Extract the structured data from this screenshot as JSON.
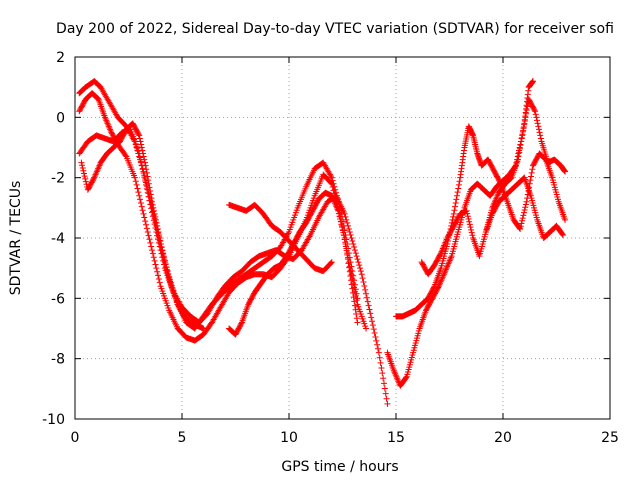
{
  "chart_data": {
    "type": "scatter",
    "title": "Day 200 of 2022, Sidereal Day-to-day VTEC variation (SDTVAR) for receiver sofi",
    "xlabel": "GPS time / hours",
    "ylabel": "SDTVAR / TECUs",
    "xlim": [
      0,
      25
    ],
    "ylim": [
      -10,
      2
    ],
    "xticks": [
      "0",
      "5",
      "10",
      "15",
      "20",
      "25"
    ],
    "yticks": [
      "2",
      "0",
      "-2",
      "-4",
      "-6",
      "-8",
      "-10"
    ],
    "grid": true,
    "marker": "+",
    "color": "#ff0000",
    "series": [
      {
        "name": "trace-1",
        "x": [
          0.2,
          0.5,
          0.9,
          1.2,
          1.6,
          2.0,
          2.4,
          2.8,
          3.2,
          3.6,
          4.0,
          4.4,
          4.8,
          5.2,
          5.6,
          6.0,
          6.4,
          6.8,
          7.2,
          7.6,
          8.0,
          8.4,
          8.8,
          9.2,
          9.6,
          10.0,
          10.4,
          10.8,
          11.2,
          11.6,
          12.0,
          12.4,
          12.8,
          13.2
        ],
        "y": [
          0.8,
          1.0,
          1.2,
          1.0,
          0.5,
          0.0,
          -0.3,
          -0.8,
          -1.8,
          -3.0,
          -4.2,
          -5.3,
          -6.2,
          -6.8,
          -7.0,
          -6.6,
          -6.2,
          -5.9,
          -5.6,
          -5.4,
          -5.2,
          -5.0,
          -4.8,
          -4.6,
          -4.3,
          -3.8,
          -3.0,
          -2.3,
          -1.7,
          -1.5,
          -2.0,
          -3.0,
          -4.5,
          -6.0
        ]
      },
      {
        "name": "trace-2",
        "x": [
          0.2,
          0.5,
          0.8,
          1.1,
          1.4,
          1.7,
          2.0,
          2.4,
          2.8,
          3.2,
          3.6,
          4.0,
          4.4,
          4.8,
          5.2,
          5.6,
          6.0,
          6.4,
          6.8,
          7.2,
          7.6,
          8.0,
          8.4,
          8.8,
          9.2,
          9.6,
          10.0,
          10.4,
          10.8,
          11.2,
          11.6,
          12.0,
          12.4,
          12.8,
          13.2,
          13.6
        ],
        "y": [
          0.2,
          0.6,
          0.8,
          0.6,
          0.0,
          -0.5,
          -0.9,
          -1.3,
          -2.0,
          -3.2,
          -4.4,
          -5.6,
          -6.4,
          -7.0,
          -7.3,
          -7.4,
          -7.2,
          -6.8,
          -6.3,
          -5.8,
          -5.5,
          -5.3,
          -5.2,
          -5.2,
          -5.3,
          -5.0,
          -4.6,
          -4.0,
          -3.4,
          -2.6,
          -1.9,
          -2.2,
          -3.3,
          -4.8,
          -6.2,
          -7.0
        ]
      },
      {
        "name": "trace-3",
        "x": [
          0.2,
          0.6,
          1.0,
          1.4,
          1.8,
          2.2,
          2.6,
          3.0,
          3.4,
          3.8,
          4.2,
          4.6,
          5.0,
          5.4,
          5.8,
          6.2,
          6.6,
          7.0,
          7.4,
          7.8,
          8.2,
          8.6,
          9.0,
          9.4,
          9.8,
          10.2,
          10.6,
          11.0,
          11.4,
          11.8,
          12.2,
          12.6,
          13.0,
          13.4,
          13.8,
          14.2,
          14.6
        ],
        "y": [
          -1.2,
          -0.8,
          -0.6,
          -0.7,
          -0.8,
          -0.5,
          -0.4,
          -1.2,
          -2.5,
          -3.8,
          -5.0,
          -5.8,
          -6.3,
          -6.6,
          -6.8,
          -6.5,
          -6.0,
          -5.6,
          -5.3,
          -5.1,
          -4.8,
          -4.6,
          -4.5,
          -4.4,
          -4.6,
          -4.7,
          -4.4,
          -3.9,
          -3.3,
          -2.8,
          -2.6,
          -3.2,
          -4.2,
          -5.2,
          -6.5,
          -7.8,
          -9.5
        ]
      },
      {
        "name": "trace-4",
        "x": [
          0.3,
          0.6,
          0.9,
          1.2,
          1.5,
          1.8,
          2.1,
          2.4,
          2.7,
          3.0,
          3.3,
          3.6,
          3.9,
          4.2,
          4.5,
          4.8,
          5.1,
          5.4,
          5.7,
          6.0
        ],
        "y": [
          -1.5,
          -2.4,
          -2.0,
          -1.5,
          -1.2,
          -1.0,
          -0.8,
          -0.4,
          -0.2,
          -0.6,
          -1.6,
          -2.8,
          -3.8,
          -4.8,
          -5.6,
          -6.2,
          -6.6,
          -6.8,
          -6.9,
          -7.0
        ]
      },
      {
        "name": "trace-5",
        "x": [
          7.2,
          7.6,
          8.0,
          8.4,
          8.8,
          9.2,
          9.6,
          10.0,
          10.4,
          10.8,
          11.2,
          11.6,
          12.0
        ],
        "y": [
          -2.9,
          -3.0,
          -3.1,
          -2.9,
          -3.2,
          -3.6,
          -3.8,
          -4.1,
          -4.4,
          -4.7,
          -5.0,
          -5.1,
          -4.8
        ]
      },
      {
        "name": "trace-6",
        "x": [
          7.2,
          7.5,
          7.8,
          8.1,
          8.4,
          8.7,
          9.0,
          9.3,
          9.6,
          9.9,
          10.2,
          10.5,
          10.8,
          11.1,
          11.4,
          11.7,
          12.0,
          12.3,
          12.6,
          12.9,
          13.2
        ],
        "y": [
          -7.0,
          -7.2,
          -6.8,
          -6.2,
          -5.8,
          -5.5,
          -5.2,
          -5.0,
          -4.9,
          -4.6,
          -4.2,
          -3.8,
          -3.5,
          -3.1,
          -2.7,
          -2.5,
          -2.6,
          -3.1,
          -4.0,
          -5.4,
          -6.8
        ]
      },
      {
        "name": "trace-7",
        "x": [
          14.6,
          14.9,
          15.2,
          15.5,
          15.8,
          16.1,
          16.4,
          16.7,
          17.0,
          17.3,
          17.6,
          17.9,
          18.2,
          18.5,
          18.8,
          19.1,
          19.4,
          19.7,
          20.0,
          20.3,
          20.6,
          20.9,
          21.2,
          21.5,
          21.8,
          22.1,
          22.4,
          22.7,
          22.9
        ],
        "y": [
          -7.8,
          -8.4,
          -8.9,
          -8.6,
          -7.8,
          -7.0,
          -6.4,
          -6.0,
          -5.6,
          -5.1,
          -4.6,
          -3.8,
          -3.0,
          -2.4,
          -2.2,
          -2.4,
          -2.6,
          -2.3,
          -2.1,
          -1.9,
          -1.6,
          -0.6,
          0.6,
          0.2,
          -0.8,
          -1.5,
          -1.4,
          -1.6,
          -1.8
        ]
      },
      {
        "name": "trace-8",
        "x": [
          15.0,
          15.3,
          15.6,
          15.9,
          16.2,
          16.5,
          16.8,
          17.1,
          17.4,
          17.7,
          18.0,
          18.2,
          18.4,
          18.6,
          18.8,
          19.0,
          19.3,
          19.6,
          19.9,
          20.2,
          20.5,
          20.8,
          21.1,
          21.4,
          21.7,
          22.0,
          22.3,
          22.6,
          22.9
        ],
        "y": [
          -6.6,
          -6.6,
          -6.5,
          -6.4,
          -6.2,
          -6.0,
          -5.6,
          -5.0,
          -4.2,
          -3.2,
          -2.0,
          -1.0,
          -0.3,
          -0.6,
          -1.2,
          -1.6,
          -1.4,
          -1.8,
          -2.2,
          -2.8,
          -3.4,
          -3.7,
          -2.8,
          -1.6,
          -1.2,
          -1.4,
          -2.0,
          -2.8,
          -3.4
        ]
      },
      {
        "name": "trace-9",
        "x": [
          16.2,
          16.5,
          16.8,
          17.1,
          17.4,
          17.7,
          18.0,
          18.3,
          18.6,
          18.9,
          19.2,
          19.5,
          19.8,
          20.1,
          20.4,
          20.7,
          21.0,
          21.3,
          21.6,
          21.9,
          22.2,
          22.5,
          22.8
        ],
        "y": [
          -4.8,
          -5.2,
          -4.9,
          -4.5,
          -4.0,
          -3.6,
          -3.2,
          -3.1,
          -4.0,
          -4.6,
          -3.8,
          -3.2,
          -2.8,
          -2.6,
          -2.4,
          -2.2,
          -2.0,
          -2.6,
          -3.4,
          -4.0,
          -3.8,
          -3.6,
          -3.9
        ]
      },
      {
        "name": "trace-10",
        "x": [
          19.2,
          19.5,
          19.8,
          20.1,
          20.4,
          20.7,
          21.0,
          21.2,
          21.4
        ],
        "y": [
          -3.8,
          -3.0,
          -2.5,
          -2.2,
          -2.0,
          -1.4,
          -0.2,
          1.0,
          1.2
        ]
      }
    ]
  }
}
